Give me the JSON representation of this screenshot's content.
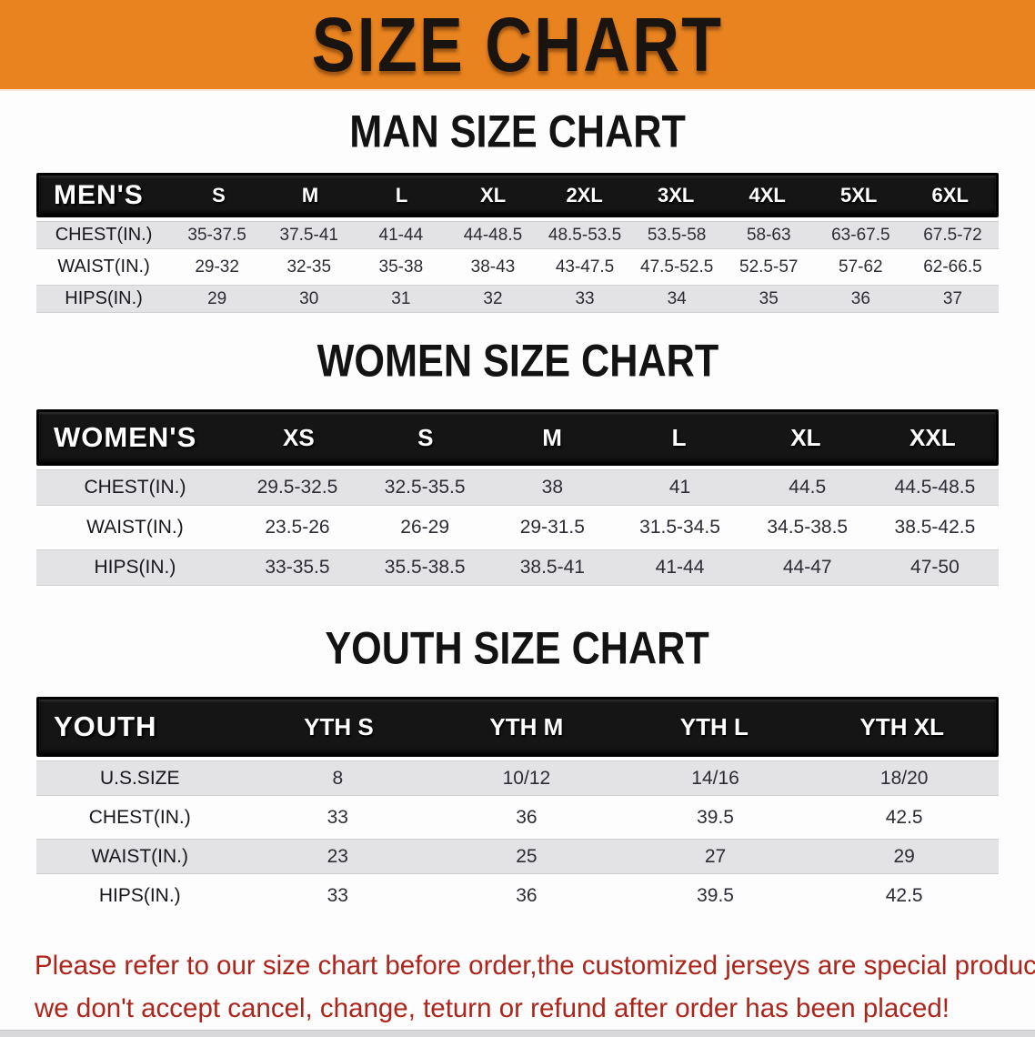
{
  "banner": {
    "title": "SIZE CHART",
    "bg_color": "#e8831f",
    "text_color": "#191410"
  },
  "sections": [
    {
      "heading": "MAN SIZE CHART",
      "table": {
        "label": "MEN'S",
        "columns": [
          "S",
          "M",
          "L",
          "XL",
          "2XL",
          "3XL",
          "4XL",
          "5XL",
          "6XL"
        ],
        "rows": [
          {
            "label": "CHEST(IN.)",
            "values": [
              "35-37.5",
              "37.5-41",
              "41-44",
              "44-48.5",
              "48.5-53.5",
              "53.5-58",
              "58-63",
              "63-67.5",
              "67.5-72"
            ]
          },
          {
            "label": "WAIST(IN.)",
            "values": [
              "29-32",
              "32-35",
              "35-38",
              "38-43",
              "43-47.5",
              "47.5-52.5",
              "52.5-57",
              "57-62",
              "62-66.5"
            ]
          },
          {
            "label": "HIPS(IN.)",
            "values": [
              "29",
              "30",
              "31",
              "32",
              "33",
              "34",
              "35",
              "36",
              "37"
            ]
          }
        ]
      }
    },
    {
      "heading": "WOMEN SIZE CHART",
      "table": {
        "label": "WOMEN'S",
        "columns": [
          "XS",
          "S",
          "M",
          "L",
          "XL",
          "XXL"
        ],
        "rows": [
          {
            "label": "CHEST(IN.)",
            "values": [
              "29.5-32.5",
              "32.5-35.5",
              "38",
              "41",
              "44.5",
              "44.5-48.5"
            ]
          },
          {
            "label": "WAIST(IN.)",
            "values": [
              "23.5-26",
              "26-29",
              "29-31.5",
              "31.5-34.5",
              "34.5-38.5",
              "38.5-42.5"
            ]
          },
          {
            "label": "HIPS(IN.)",
            "values": [
              "33-35.5",
              "35.5-38.5",
              "38.5-41",
              "41-44",
              "44-47",
              "47-50"
            ]
          }
        ]
      }
    },
    {
      "heading": "YOUTH SIZE CHART",
      "table": {
        "label": "YOUTH",
        "columns": [
          "YTH S",
          "YTH M",
          "YTH L",
          "YTH XL"
        ],
        "rows": [
          {
            "label": "U.S.SIZE",
            "values": [
              "8",
              "10/12",
              "14/16",
              "18/20"
            ]
          },
          {
            "label": "CHEST(IN.)",
            "values": [
              "33",
              "36",
              "39.5",
              "42.5"
            ]
          },
          {
            "label": "WAIST(IN.)",
            "values": [
              "23",
              "25",
              "27",
              "29"
            ]
          },
          {
            "label": "HIPS(IN.)",
            "values": [
              "33",
              "36",
              "39.5",
              "42.5"
            ]
          }
        ]
      }
    }
  ],
  "footer": {
    "line1": "Please refer to our size chart before order,the customized jerseys are special products,",
    "line2": "we don't accept cancel, change, teturn or refund after order has been placed!",
    "text_color": "#ad241b"
  },
  "table_style": {
    "header_bg": "#151515",
    "stripe_color": "#e3e3e5"
  }
}
